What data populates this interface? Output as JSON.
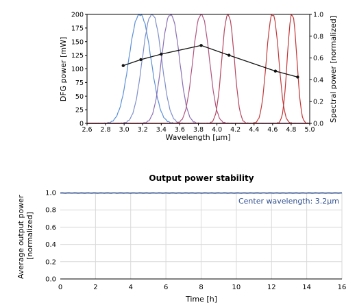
{
  "chart_data": [
    {
      "type": "line",
      "xlabel": "Wavelength [µm]",
      "ylabel": "DFG power [mW]",
      "y2label": "Spectral power [normalized]",
      "xlim": [
        2.6,
        5.0
      ],
      "ylim": [
        0,
        200
      ],
      "y2lim": [
        0,
        1.0
      ],
      "xticks": [
        "2.6",
        "2.8",
        "3.0",
        "3.2",
        "3.4",
        "3.6",
        "3.8",
        "4.0",
        "4.2",
        "4.4",
        "4.6",
        "4.8",
        "5.0"
      ],
      "yticks": [
        "0",
        "25",
        "50",
        "75",
        "100",
        "125",
        "150",
        "175",
        "200"
      ],
      "y2ticks": [
        "0.0",
        "0.2",
        "0.4",
        "0.6",
        "0.8",
        "1.0"
      ],
      "grid": false,
      "power_series": {
        "color": "#111111",
        "x": [
          2.99,
          3.18,
          3.4,
          3.83,
          4.13,
          4.63,
          4.87
        ],
        "y": [
          106,
          117,
          127,
          143,
          125,
          96,
          85
        ]
      },
      "spectra": [
        {
          "center": 3.17,
          "width": 0.16,
          "color": "#5a8fd6"
        },
        {
          "center": 3.3,
          "width": 0.14,
          "color": "#7f8fca"
        },
        {
          "center": 3.5,
          "width": 0.13,
          "color": "#8a6fb4"
        },
        {
          "center": 3.83,
          "width": 0.12,
          "color": "#b0557f"
        },
        {
          "center": 4.12,
          "width": 0.09,
          "color": "#b5455e"
        },
        {
          "center": 4.6,
          "width": 0.09,
          "color": "#c23a3a"
        },
        {
          "center": 4.81,
          "width": 0.07,
          "color": "#c43232"
        }
      ]
    },
    {
      "type": "line",
      "title": "Output power stability",
      "xlabel": "Time [h]",
      "ylabel": "Average output power\n[normalized]",
      "xlim": [
        0,
        16
      ],
      "ylim": [
        0,
        1.0
      ],
      "xticks": [
        "0",
        "2",
        "4",
        "6",
        "8",
        "10",
        "12",
        "14",
        "16"
      ],
      "yticks": [
        "0.0",
        "0.2",
        "0.4",
        "0.6",
        "0.8",
        "1.0"
      ],
      "grid": true,
      "annotation": "Center wavelength: 3.2µm",
      "series": [
        {
          "color": "#2f4f8f",
          "x": [
            0,
            16
          ],
          "y": [
            0.995,
            0.995
          ]
        }
      ]
    }
  ],
  "colors": {
    "axis": "#000000",
    "grid": "#d9d9d9",
    "stability_line": "#2f4f8f",
    "annotation_text": "#2f4f8f"
  }
}
